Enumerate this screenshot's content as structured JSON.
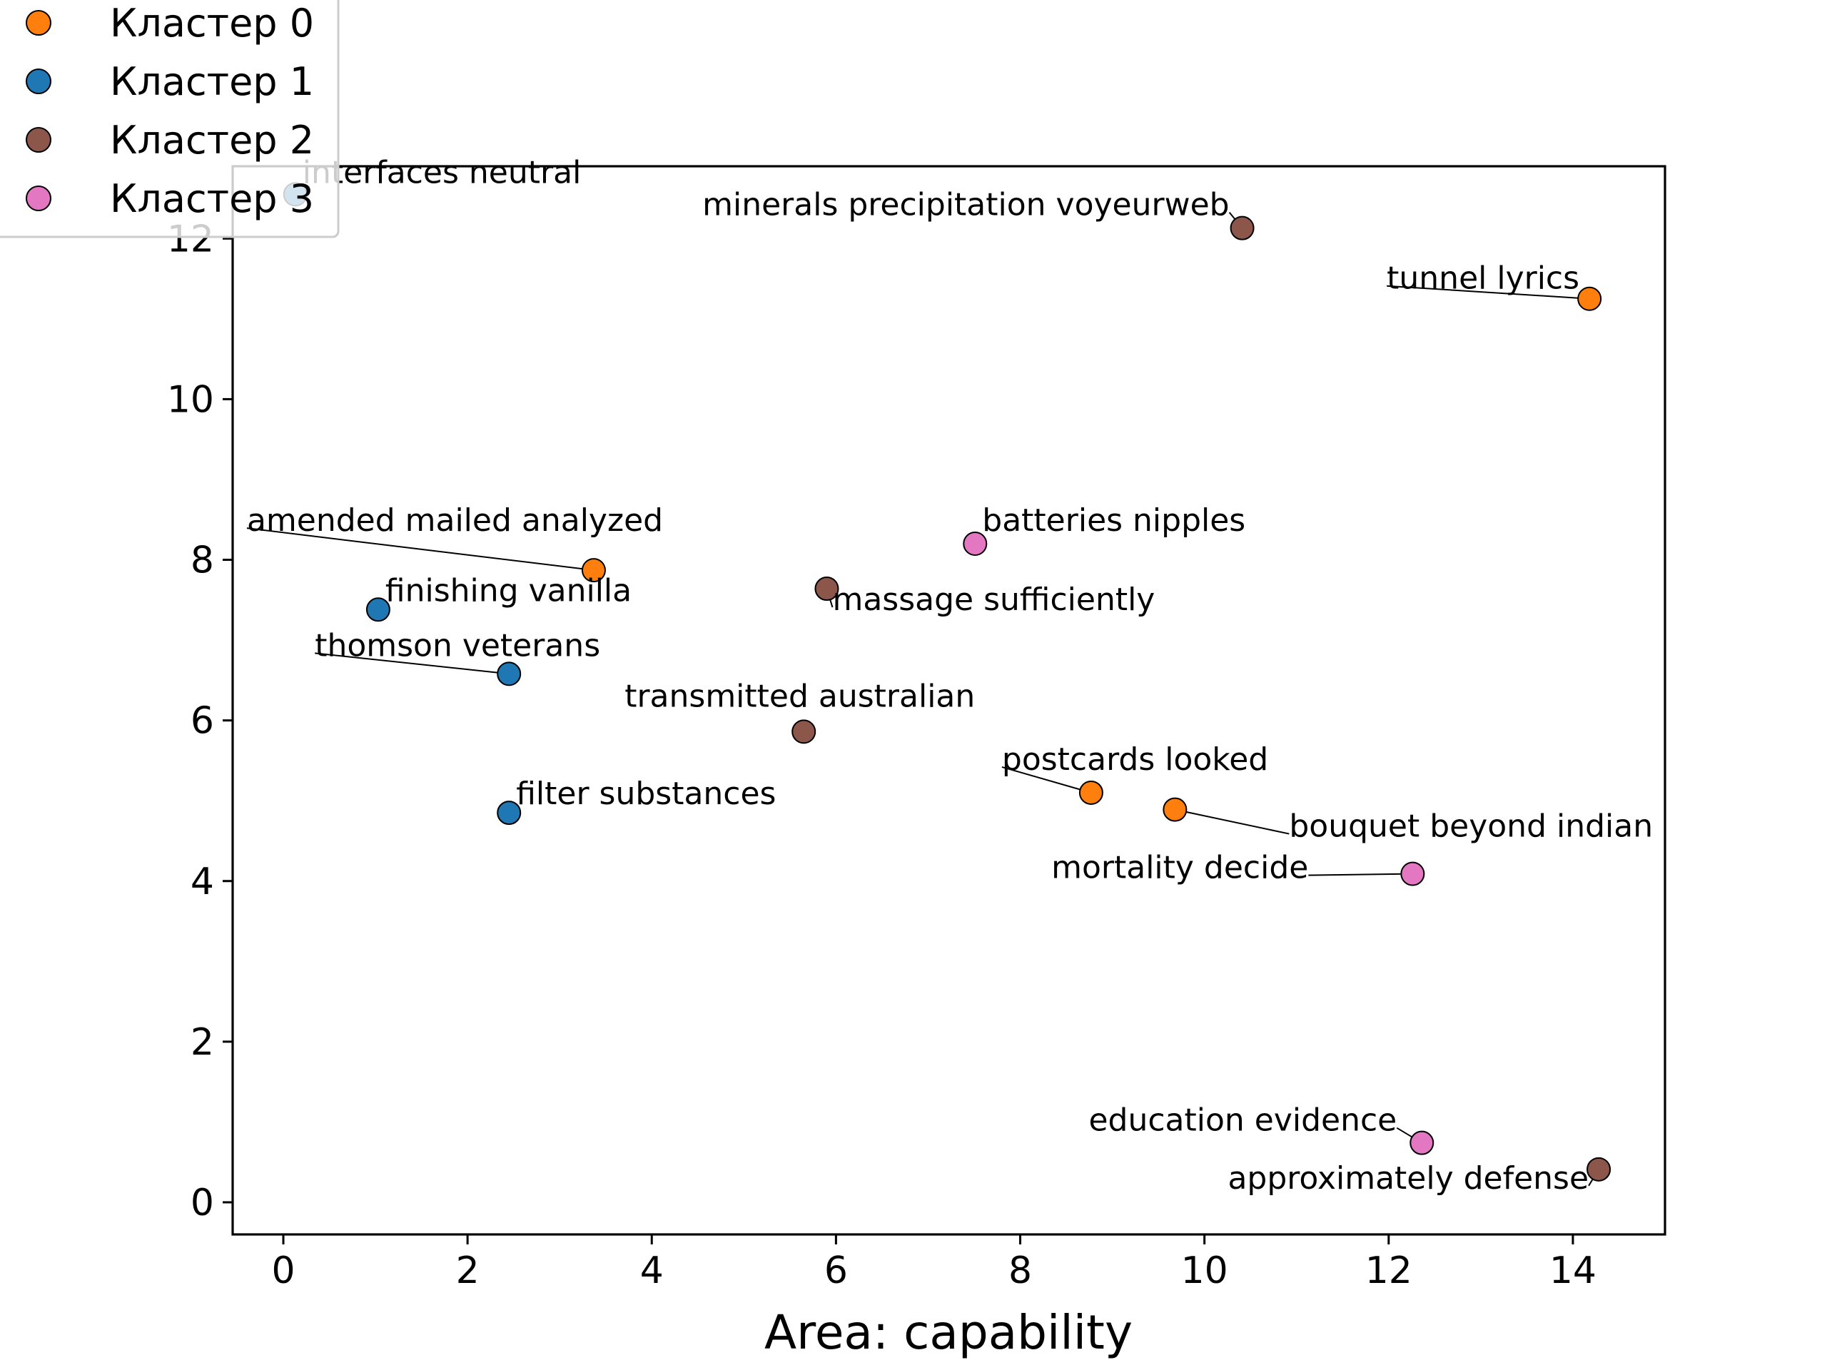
{
  "chart_data": {
    "type": "scatter",
    "title": "",
    "xlabel": "Area: capability",
    "ylabel": "",
    "xlim": [
      -0.55,
      15.0
    ],
    "ylim": [
      -0.4,
      12.9
    ],
    "x_ticks": [
      0,
      2,
      4,
      6,
      8,
      10,
      12,
      14
    ],
    "y_ticks": [
      0,
      2,
      4,
      6,
      8,
      10,
      12
    ],
    "grid": false,
    "legend_position": "top-left",
    "series": [
      {
        "name": "Кластер 0",
        "color": "#ff7f0e",
        "points": [
          {
            "x": 3.37,
            "y": 7.87,
            "label": "amended mailed analyzed"
          },
          {
            "x": 8.77,
            "y": 5.1,
            "label": "postcards looked"
          },
          {
            "x": 9.68,
            "y": 4.89,
            "label": "bouquet beyond indian"
          },
          {
            "x": 14.18,
            "y": 11.25,
            "label": "tunnel lyrics"
          }
        ]
      },
      {
        "name": "Кластер 1",
        "color": "#1f77b4",
        "points": [
          {
            "x": 0.13,
            "y": 12.55,
            "label": "interfaces neutral"
          },
          {
            "x": 1.03,
            "y": 7.38,
            "label": "finishing vanilla"
          },
          {
            "x": 2.45,
            "y": 6.58,
            "label": "thomson veterans"
          },
          {
            "x": 2.45,
            "y": 4.85,
            "label": "filter substances"
          }
        ]
      },
      {
        "name": "Кластер 2",
        "color": "#8c564b",
        "points": [
          {
            "x": 10.41,
            "y": 12.13,
            "label": "minerals precipitation voyeurweb"
          },
          {
            "x": 5.9,
            "y": 7.64,
            "label": "massage sufficiently"
          },
          {
            "x": 5.65,
            "y": 5.86,
            "label": "transmitted australian"
          },
          {
            "x": 14.28,
            "y": 0.41,
            "label": "approximately defense"
          }
        ]
      },
      {
        "name": "Кластер 3",
        "color": "#e377c2",
        "points": [
          {
            "x": 7.51,
            "y": 8.2,
            "label": "batteries nipples"
          },
          {
            "x": 12.26,
            "y": 4.09,
            "label": "mortality decide"
          },
          {
            "x": 12.36,
            "y": 0.74,
            "label": "education evidence"
          }
        ]
      }
    ]
  }
}
